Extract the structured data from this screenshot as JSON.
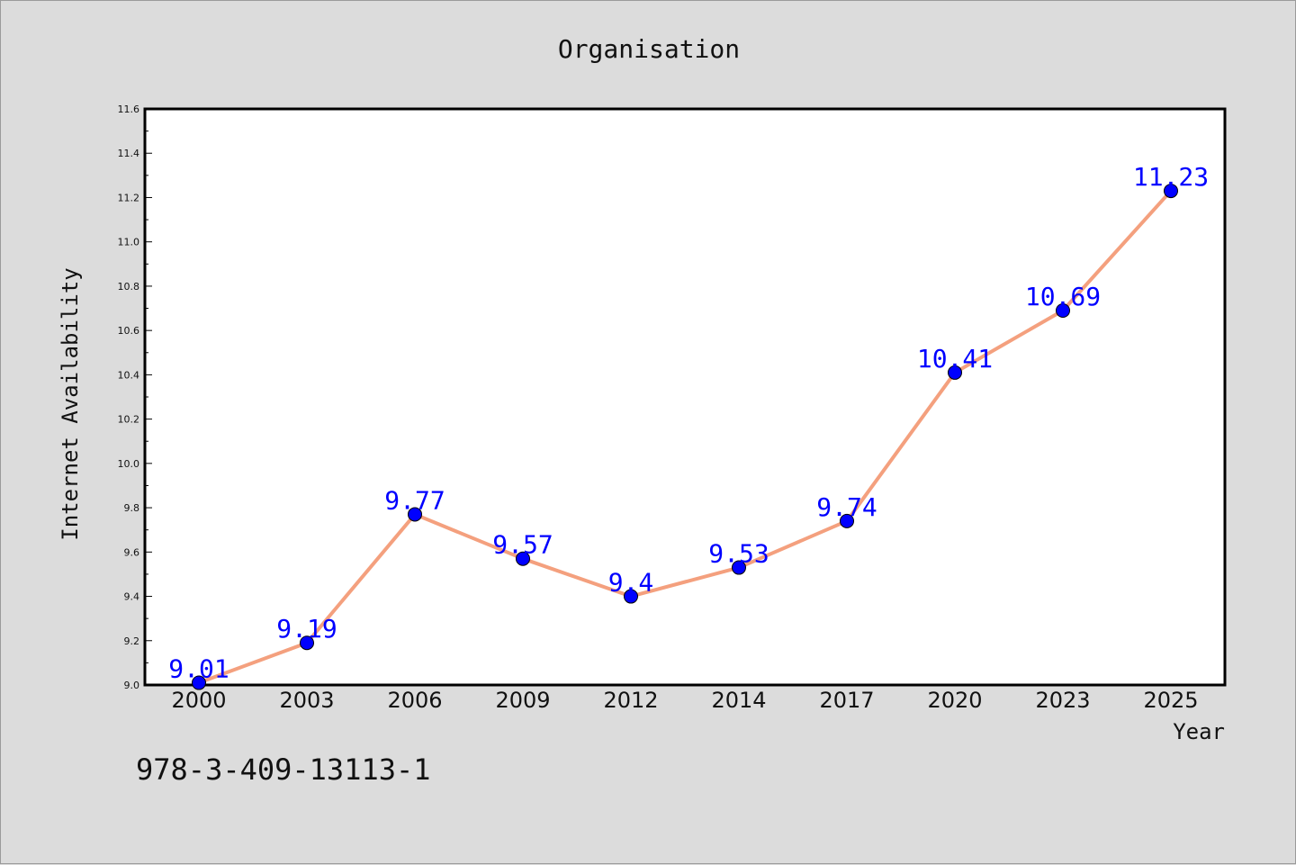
{
  "chart_data": {
    "type": "line",
    "title": "Organisation",
    "xlabel": "Year",
    "ylabel": "Internet Availability",
    "categories": [
      "2000",
      "2003",
      "2006",
      "2009",
      "2012",
      "2014",
      "2017",
      "2020",
      "2023",
      "2025"
    ],
    "series": [
      {
        "values": [
          9.01,
          9.19,
          9.77,
          9.57,
          9.4,
          9.53,
          9.74,
          10.41,
          10.69,
          11.23
        ],
        "line_color": "#f4a07e",
        "marker_color": "#0000ff"
      }
    ],
    "data_labels": [
      "9.01",
      "9.19",
      "9.77",
      "9.57",
      "9.4",
      "9.53",
      "9.74",
      "10.41",
      "10.69",
      "11.23"
    ],
    "ylim": [
      9.0,
      11.6
    ],
    "yticks": [
      "9.0",
      "9.2",
      "9.4",
      "9.6",
      "9.8",
      "10.0",
      "10.2",
      "10.4",
      "10.6",
      "10.8",
      "11.0",
      "11.2",
      "11.4",
      "11.6"
    ],
    "grid": false,
    "legend": "none",
    "plot_background": "#ffffff"
  },
  "footer": {
    "text": "978-3-409-13113-1"
  }
}
